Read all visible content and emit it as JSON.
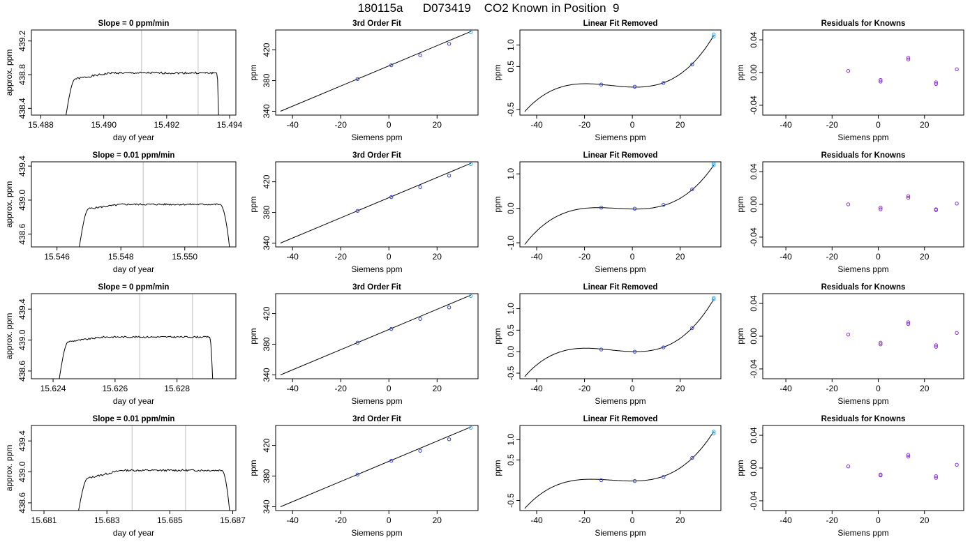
{
  "figure": {
    "title": "180115a      D073419    CO2 Known in Position  9"
  },
  "chart_data": [
    {
      "type": "line",
      "title": "Slope =  0  ppm/min",
      "xlabel": "day of year",
      "ylabel": "approx. ppm",
      "xlim": [
        15.4877,
        15.4942
      ],
      "ylim": [
        438.32,
        439.33
      ],
      "xticks": [
        15.488,
        15.49,
        15.492,
        15.494
      ],
      "xtick_labels": [
        "15.488",
        "15.490",
        "15.492",
        "15.494"
      ],
      "yticks": [
        438.4,
        438.8,
        439.2
      ],
      "ytick_labels": [
        "438.4",
        "438.8",
        "439.2"
      ],
      "vlines": [
        15.4912,
        15.493
      ],
      "trace": {
        "x_start": 15.4888,
        "rise_start": 438.32,
        "rise_end": 438.75,
        "rise_end_x": 15.4891,
        "plateau": 438.82,
        "plateau_end_x": 15.4936,
        "fall_end": 438.32,
        "fall_end_x": 15.49365,
        "noise": 0.012
      }
    },
    {
      "type": "line",
      "title": "3rd Order Fit",
      "xlabel": "Siemens ppm",
      "ylabel": "ppm",
      "xlim": [
        -47,
        37
      ],
      "ylim": [
        335,
        446
      ],
      "xticks": [
        -40,
        -20,
        0,
        20
      ],
      "xtick_labels": [
        "-40",
        "-20",
        "0",
        "20"
      ],
      "yticks": [
        340,
        380,
        420
      ],
      "ytick_labels": [
        "340",
        "380",
        "420"
      ],
      "line": {
        "x": [
          -45,
          34
        ],
        "y": [
          340,
          444
        ]
      },
      "points": {
        "x": [
          -13,
          1,
          13,
          25,
          34
        ],
        "y": [
          382,
          400,
          413,
          428,
          443
        ]
      }
    },
    {
      "type": "line",
      "title": "Linear Fit Removed",
      "xlabel": "Siemens ppm",
      "ylabel": "ppm",
      "xlim": [
        -47,
        37
      ],
      "ylim": [
        -0.63,
        1.35
      ],
      "xticks": [
        -40,
        -20,
        0,
        20
      ],
      "xtick_labels": [
        "-40",
        "-20",
        "0",
        "20"
      ],
      "yticks": [
        -0.5,
        0.5,
        1.0
      ],
      "ytick_labels": [
        "-0.5",
        "0.5",
        "1.0"
      ],
      "curve": {
        "x_start": -45,
        "x_end": 34,
        "y_at": [
          [
            -45,
            -0.55
          ],
          [
            -20,
            0.1
          ],
          [
            1,
            0.02
          ],
          [
            34,
            1.22
          ]
        ]
      },
      "points": {
        "x": [
          -13,
          1,
          13,
          25,
          34,
          34
        ],
        "y": [
          0.08,
          0.03,
          0.12,
          0.55,
          1.2,
          1.25
        ]
      }
    },
    {
      "type": "scatter",
      "title": "Residuals for Knowns",
      "xlabel": "Siemens ppm",
      "ylabel": "ppm",
      "xlim": [
        -50,
        37
      ],
      "ylim": [
        -0.052,
        0.052
      ],
      "xticks": [
        -40,
        -20,
        0,
        20
      ],
      "xtick_labels": [
        "-40",
        "-20",
        "0",
        "20"
      ],
      "yticks": [
        -0.04,
        0.0,
        0.04
      ],
      "ytick_labels": [
        "-0.04",
        "0.00",
        "0.04"
      ],
      "points": {
        "x": [
          -13,
          1,
          1,
          13,
          13,
          25,
          25,
          34
        ],
        "y": [
          0.002,
          -0.009,
          -0.011,
          0.018,
          0.016,
          -0.012,
          -0.014,
          0.004
        ]
      }
    },
    {
      "type": "line",
      "title": "Slope =  0.01  ppm/min",
      "xlabel": "day of year",
      "ylabel": "approx. ppm",
      "xlim": [
        15.5452,
        15.5516
      ],
      "ylim": [
        438.45,
        439.45
      ],
      "xticks": [
        15.546,
        15.548,
        15.55
      ],
      "xtick_labels": [
        "15.546",
        "15.548",
        "15.550"
      ],
      "yticks": [
        438.6,
        439.0,
        439.4
      ],
      "ytick_labels": [
        "438.6",
        "439.0",
        "439.4"
      ],
      "vlines": [
        15.5487,
        15.5504
      ],
      "trace": {
        "x_start": 15.5467,
        "rise_start": 438.45,
        "rise_end": 438.9,
        "rise_end_x": 15.547,
        "plateau": 438.95,
        "plateau_end_x": 15.5511,
        "fall_end": 438.45,
        "fall_end_x": 15.5514,
        "noise": 0.01
      }
    },
    {
      "type": "line",
      "title": "3rd Order Fit",
      "xlabel": "Siemens ppm",
      "ylabel": "ppm",
      "xlim": [
        -47,
        37
      ],
      "ylim": [
        335,
        446
      ],
      "xticks": [
        -40,
        -20,
        0,
        20
      ],
      "xtick_labels": [
        "-40",
        "-20",
        "0",
        "20"
      ],
      "yticks": [
        340,
        380,
        420
      ],
      "ytick_labels": [
        "340",
        "380",
        "420"
      ],
      "line": {
        "x": [
          -45,
          34
        ],
        "y": [
          340,
          444
        ]
      },
      "points": {
        "x": [
          -13,
          1,
          13,
          25,
          34
        ],
        "y": [
          382,
          400,
          413,
          428,
          443
        ]
      }
    },
    {
      "type": "line",
      "title": "Linear Fit Removed",
      "xlabel": "Siemens ppm",
      "ylabel": "ppm",
      "xlim": [
        -47,
        37
      ],
      "ylim": [
        -1.12,
        1.35
      ],
      "xticks": [
        -40,
        -20,
        0,
        20
      ],
      "xtick_labels": [
        "-40",
        "-20",
        "0",
        "20"
      ],
      "yticks": [
        -1.0,
        0.0,
        1.0
      ],
      "ytick_labels": [
        "-1.0",
        "0.0",
        "1.0"
      ],
      "curve": {
        "x_start": -45,
        "x_end": 34,
        "y_at": [
          [
            -45,
            -1.05
          ],
          [
            -20,
            0.0
          ],
          [
            1,
            -0.02
          ],
          [
            34,
            1.25
          ]
        ]
      },
      "points": {
        "x": [
          -13,
          1,
          13,
          25,
          34,
          34
        ],
        "y": [
          0.02,
          -0.01,
          0.1,
          0.55,
          1.25,
          1.3
        ]
      }
    },
    {
      "type": "scatter",
      "title": "Residuals for Knowns",
      "xlabel": "Siemens ppm",
      "ylabel": "ppm",
      "xlim": [
        -50,
        37
      ],
      "ylim": [
        -0.052,
        0.052
      ],
      "xticks": [
        -40,
        -20,
        0,
        20
      ],
      "xtick_labels": [
        "-40",
        "-20",
        "0",
        "20"
      ],
      "yticks": [
        -0.04,
        0.0,
        0.04
      ],
      "ytick_labels": [
        "-0.04",
        "0.00",
        "0.04"
      ],
      "points": {
        "x": [
          -13,
          1,
          1,
          13,
          13,
          25,
          25,
          34
        ],
        "y": [
          0.0,
          -0.004,
          -0.006,
          0.008,
          0.01,
          -0.006,
          -0.007,
          0.001
        ]
      }
    },
    {
      "type": "line",
      "title": "Slope =  0  ppm/min",
      "xlabel": "day of year",
      "ylabel": "approx. ppm",
      "xlim": [
        15.6233,
        15.6299
      ],
      "ylim": [
        438.5,
        439.6
      ],
      "xticks": [
        15.624,
        15.626,
        15.628
      ],
      "xtick_labels": [
        "15.624",
        "15.626",
        "15.628"
      ],
      "yticks": [
        438.6,
        439.0,
        439.4
      ],
      "ytick_labels": [
        "438.6",
        "439.0",
        "439.4"
      ],
      "vlines": [
        15.6268,
        15.6285
      ],
      "trace": {
        "x_start": 15.6242,
        "rise_start": 438.5,
        "rise_end": 438.98,
        "rise_end_x": 15.6245,
        "plateau": 439.04,
        "plateau_end_x": 15.62905,
        "fall_end": 438.5,
        "fall_end_x": 15.62915,
        "noise": 0.01
      }
    },
    {
      "type": "line",
      "title": "3rd Order Fit",
      "xlabel": "Siemens ppm",
      "ylabel": "ppm",
      "xlim": [
        -47,
        37
      ],
      "ylim": [
        335,
        446
      ],
      "xticks": [
        -40,
        -20,
        0,
        20
      ],
      "xtick_labels": [
        "-40",
        "-20",
        "0",
        "20"
      ],
      "yticks": [
        340,
        380,
        420
      ],
      "ytick_labels": [
        "340",
        "380",
        "420"
      ],
      "line": {
        "x": [
          -45,
          34
        ],
        "y": [
          340,
          444
        ]
      },
      "points": {
        "x": [
          -13,
          1,
          13,
          25,
          34
        ],
        "y": [
          382,
          400,
          413,
          428,
          443
        ]
      }
    },
    {
      "type": "line",
      "title": "Linear Fit Removed",
      "xlabel": "Siemens ppm",
      "ylabel": "ppm",
      "xlim": [
        -47,
        37
      ],
      "ylim": [
        -0.63,
        1.35
      ],
      "xticks": [
        -40,
        -20,
        0,
        20
      ],
      "xtick_labels": [
        "-40",
        "-20",
        "0",
        "20"
      ],
      "yticks": [
        -0.5,
        0.0,
        0.5,
        1.0
      ],
      "ytick_labels": [
        "-0.5",
        "0.0",
        "0.5",
        "1.0"
      ],
      "curve": {
        "x_start": -45,
        "x_end": 34,
        "y_at": [
          [
            -45,
            -0.58
          ],
          [
            -20,
            0.08
          ],
          [
            1,
            0.0
          ],
          [
            34,
            1.22
          ]
        ]
      },
      "points": {
        "x": [
          -13,
          1,
          13,
          25,
          34,
          34
        ],
        "y": [
          0.05,
          0.0,
          0.1,
          0.55,
          1.22,
          1.25
        ]
      }
    },
    {
      "type": "scatter",
      "title": "Residuals for Knowns",
      "xlabel": "Siemens ppm",
      "ylabel": "ppm",
      "xlim": [
        -50,
        37
      ],
      "ylim": [
        -0.052,
        0.052
      ],
      "xticks": [
        -40,
        -20,
        0,
        20
      ],
      "xtick_labels": [
        "-40",
        "-20",
        "0",
        "20"
      ],
      "yticks": [
        -0.04,
        0.0,
        0.04
      ],
      "ytick_labels": [
        "-0.04",
        "0.00",
        "0.04"
      ],
      "points": {
        "x": [
          -13,
          1,
          1,
          13,
          13,
          25,
          25,
          34
        ],
        "y": [
          0.002,
          -0.008,
          -0.01,
          0.017,
          0.015,
          -0.011,
          -0.013,
          0.004
        ]
      }
    },
    {
      "type": "line",
      "title": "Slope =  0.01  ppm/min",
      "xlabel": "day of year",
      "ylabel": "approx. ppm",
      "xlim": [
        15.6806,
        15.6871
      ],
      "ylim": [
        438.5,
        439.6
      ],
      "xticks": [
        15.681,
        15.683,
        15.685,
        15.687
      ],
      "xtick_labels": [
        "15.681",
        "15.683",
        "15.685",
        "15.687"
      ],
      "yticks": [
        438.6,
        439.0,
        439.4
      ],
      "ytick_labels": [
        "438.6",
        "439.0",
        "439.4"
      ],
      "vlines": [
        15.6838,
        15.6855
      ],
      "trace": {
        "x_start": 15.6821,
        "rise_start": 438.5,
        "rise_end": 438.92,
        "rise_end_x": 15.6824,
        "plateau": 439.02,
        "plateau_end_x": 15.68665,
        "fall_end": 438.5,
        "fall_end_x": 15.6869,
        "noise": 0.012
      }
    },
    {
      "type": "line",
      "title": "3rd Order Fit",
      "xlabel": "Siemens ppm",
      "ylabel": "ppm",
      "xlim": [
        -47,
        37
      ],
      "ylim": [
        335,
        446
      ],
      "xticks": [
        -40,
        -20,
        0,
        20
      ],
      "xtick_labels": [
        "-40",
        "-20",
        "0",
        "20"
      ],
      "yticks": [
        340,
        380,
        420
      ],
      "ytick_labels": [
        "340",
        "380",
        "420"
      ],
      "line": {
        "x": [
          -45,
          34
        ],
        "y": [
          340,
          444
        ]
      },
      "points": {
        "x": [
          -13,
          1,
          13,
          25,
          34
        ],
        "y": [
          382,
          400,
          413,
          428,
          443
        ]
      }
    },
    {
      "type": "line",
      "title": "Linear Fit Removed",
      "xlabel": "Siemens ppm",
      "ylabel": "ppm",
      "xlim": [
        -47,
        37
      ],
      "ylim": [
        -0.75,
        1.35
      ],
      "xticks": [
        -40,
        -20,
        0,
        20
      ],
      "xtick_labels": [
        "-40",
        "-20",
        "0",
        "20"
      ],
      "yticks": [
        -0.5,
        0.5,
        1.0
      ],
      "ytick_labels": [
        "-0.5",
        "0.5",
        "1.0"
      ],
      "curve": {
        "x_start": -45,
        "x_end": 34,
        "y_at": [
          [
            -45,
            -0.7
          ],
          [
            -20,
            0.02
          ],
          [
            1,
            -0.02
          ],
          [
            34,
            1.2
          ]
        ]
      },
      "points": {
        "x": [
          -13,
          1,
          13,
          25,
          34,
          34
        ],
        "y": [
          0.0,
          -0.02,
          0.08,
          0.55,
          1.15,
          1.2
        ]
      }
    },
    {
      "type": "scatter",
      "title": "Residuals for Knowns",
      "xlabel": "Siemens ppm",
      "ylabel": "ppm",
      "xlim": [
        -50,
        37
      ],
      "ylim": [
        -0.052,
        0.052
      ],
      "xticks": [
        -40,
        -20,
        0,
        20
      ],
      "xtick_labels": [
        "-40",
        "-20",
        "0",
        "20"
      ],
      "yticks": [
        -0.04,
        0.0,
        0.04
      ],
      "ytick_labels": [
        "-0.04",
        "0.00",
        "0.04"
      ],
      "points": {
        "x": [
          -13,
          1,
          1,
          13,
          13,
          25,
          25,
          34
        ],
        "y": [
          0.002,
          -0.008,
          -0.009,
          0.016,
          0.014,
          -0.01,
          -0.012,
          0.004
        ]
      }
    }
  ]
}
